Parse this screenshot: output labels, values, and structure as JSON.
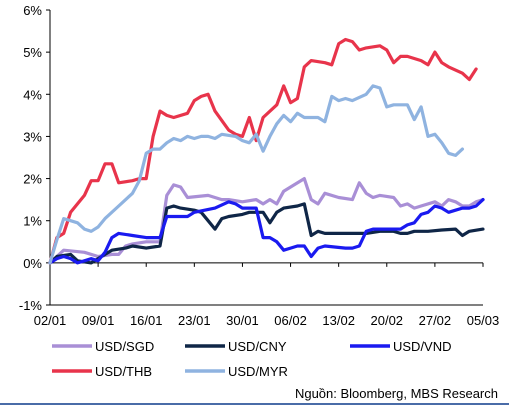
{
  "chart_data": {
    "type": "line",
    "title": "",
    "xlabel": "",
    "ylabel": "",
    "ylim": [
      -1,
      6
    ],
    "yticks": [
      "6%",
      "5%",
      "4%",
      "3%",
      "2%",
      "1%",
      "0%",
      "-1%"
    ],
    "ytick_values": [
      6,
      5,
      4,
      3,
      2,
      1,
      0,
      -1
    ],
    "x_ticks": [
      "02/01",
      "09/01",
      "16/01",
      "23/01",
      "30/01",
      "06/02",
      "13/02",
      "20/02",
      "27/02",
      "05/03"
    ],
    "grid": false,
    "legend_position": "bottom",
    "series": [
      {
        "name": "USD/SGD",
        "color": "#a98fd6",
        "points": [
          [
            0,
            0.0
          ],
          [
            2,
            0.3
          ],
          [
            5,
            0.25
          ],
          [
            7,
            0.15
          ],
          [
            9,
            0.2
          ],
          [
            10,
            0.2
          ],
          [
            11,
            0.4
          ],
          [
            12,
            0.45
          ],
          [
            14,
            0.5
          ],
          [
            16,
            0.5
          ],
          [
            17,
            1.6
          ],
          [
            18,
            1.85
          ],
          [
            19,
            1.8
          ],
          [
            20,
            1.55
          ],
          [
            23,
            1.6
          ],
          [
            25,
            1.5
          ],
          [
            26,
            1.5
          ],
          [
            28,
            1.45
          ],
          [
            30,
            1.5
          ],
          [
            31,
            1.4
          ],
          [
            32,
            1.5
          ],
          [
            33,
            1.4
          ],
          [
            34,
            1.7
          ],
          [
            35,
            1.8
          ],
          [
            37,
            2.0
          ],
          [
            38,
            1.5
          ],
          [
            39,
            1.4
          ],
          [
            40,
            1.65
          ],
          [
            42,
            1.55
          ],
          [
            44,
            1.5
          ],
          [
            45,
            1.9
          ],
          [
            46,
            1.65
          ],
          [
            47,
            1.55
          ],
          [
            48,
            1.6
          ],
          [
            50,
            1.55
          ],
          [
            51,
            1.35
          ],
          [
            52,
            1.4
          ],
          [
            53,
            1.3
          ],
          [
            54,
            1.35
          ],
          [
            56,
            1.45
          ],
          [
            57,
            1.35
          ],
          [
            58,
            1.5
          ],
          [
            59,
            1.45
          ],
          [
            60,
            1.35
          ],
          [
            61,
            1.35
          ],
          [
            62,
            1.45
          ],
          [
            63,
            1.5
          ]
        ]
      },
      {
        "name": "USD/CNY",
        "color": "#0f2647",
        "points": [
          [
            0,
            0.0
          ],
          [
            1,
            0.15
          ],
          [
            3,
            0.2
          ],
          [
            4,
            0.05
          ],
          [
            6,
            0.0
          ],
          [
            7,
            0.1
          ],
          [
            8,
            0.2
          ],
          [
            9,
            0.3
          ],
          [
            11,
            0.35
          ],
          [
            12,
            0.4
          ],
          [
            14,
            0.35
          ],
          [
            16,
            0.4
          ],
          [
            17,
            1.3
          ],
          [
            18,
            1.35
          ],
          [
            19,
            1.3
          ],
          [
            21,
            1.25
          ],
          [
            22,
            1.2
          ],
          [
            23,
            1.0
          ],
          [
            24,
            0.8
          ],
          [
            25,
            1.05
          ],
          [
            26,
            1.1
          ],
          [
            28,
            1.15
          ],
          [
            29,
            1.2
          ],
          [
            31,
            1.2
          ],
          [
            32,
            0.95
          ],
          [
            33,
            1.2
          ],
          [
            34,
            1.3
          ],
          [
            36,
            1.35
          ],
          [
            37,
            1.4
          ],
          [
            38,
            0.65
          ],
          [
            39,
            0.75
          ],
          [
            40,
            0.7
          ],
          [
            43,
            0.7
          ],
          [
            46,
            0.7
          ],
          [
            48,
            0.75
          ],
          [
            50,
            0.75
          ],
          [
            51,
            0.7
          ],
          [
            52,
            0.7
          ],
          [
            53,
            0.75
          ],
          [
            55,
            0.75
          ],
          [
            57,
            0.78
          ],
          [
            59,
            0.8
          ],
          [
            60,
            0.65
          ],
          [
            61,
            0.75
          ],
          [
            63,
            0.8
          ]
        ]
      },
      {
        "name": "USD/VND",
        "color": "#1a1af0",
        "points": [
          [
            0,
            0.0
          ],
          [
            1,
            0.1
          ],
          [
            2,
            0.15
          ],
          [
            3,
            0.1
          ],
          [
            4,
            0.0
          ],
          [
            5,
            0.05
          ],
          [
            6,
            0.1
          ],
          [
            7,
            0.05
          ],
          [
            8,
            0.25
          ],
          [
            9,
            0.6
          ],
          [
            10,
            0.7
          ],
          [
            12,
            0.65
          ],
          [
            14,
            0.6
          ],
          [
            16,
            0.6
          ],
          [
            17,
            1.1
          ],
          [
            18,
            1.1
          ],
          [
            20,
            1.1
          ],
          [
            21,
            1.2
          ],
          [
            24,
            1.3
          ],
          [
            26,
            1.45
          ],
          [
            27,
            1.4
          ],
          [
            28,
            1.3
          ],
          [
            30,
            1.3
          ],
          [
            31,
            0.6
          ],
          [
            32,
            0.6
          ],
          [
            33,
            0.5
          ],
          [
            34,
            0.3
          ],
          [
            35,
            0.35
          ],
          [
            36,
            0.4
          ],
          [
            37,
            0.4
          ],
          [
            38,
            0.15
          ],
          [
            39,
            0.35
          ],
          [
            40,
            0.4
          ],
          [
            43,
            0.35
          ],
          [
            44,
            0.35
          ],
          [
            45,
            0.4
          ],
          [
            46,
            0.75
          ],
          [
            47,
            0.8
          ],
          [
            50,
            0.8
          ],
          [
            51,
            0.8
          ],
          [
            52,
            0.9
          ],
          [
            53,
            0.95
          ],
          [
            54,
            1.15
          ],
          [
            55,
            1.2
          ],
          [
            56,
            1.35
          ],
          [
            57,
            1.3
          ],
          [
            58,
            1.2
          ],
          [
            59,
            1.25
          ],
          [
            60,
            1.3
          ],
          [
            61,
            1.3
          ],
          [
            62,
            1.35
          ],
          [
            63,
            1.5
          ]
        ]
      },
      {
        "name": "USD/THB",
        "color": "#e8344b",
        "points": [
          [
            0,
            0.0
          ],
          [
            1,
            0.6
          ],
          [
            2,
            0.7
          ],
          [
            3,
            1.2
          ],
          [
            5,
            1.6
          ],
          [
            6,
            1.95
          ],
          [
            7,
            1.95
          ],
          [
            8,
            2.35
          ],
          [
            9,
            2.35
          ],
          [
            10,
            1.9
          ],
          [
            12,
            1.95
          ],
          [
            13,
            2.0
          ],
          [
            14,
            2.0
          ],
          [
            15,
            3.0
          ],
          [
            16,
            3.6
          ],
          [
            17,
            3.5
          ],
          [
            18,
            3.45
          ],
          [
            20,
            3.55
          ],
          [
            21,
            3.85
          ],
          [
            22,
            3.95
          ],
          [
            23,
            4.0
          ],
          [
            24,
            3.6
          ],
          [
            26,
            3.15
          ],
          [
            27,
            3.05
          ],
          [
            28,
            3.0
          ],
          [
            29,
            3.45
          ],
          [
            30,
            2.9
          ],
          [
            31,
            3.45
          ],
          [
            33,
            3.75
          ],
          [
            34,
            4.2
          ],
          [
            35,
            3.8
          ],
          [
            36,
            3.9
          ],
          [
            37,
            4.65
          ],
          [
            38,
            4.8
          ],
          [
            40,
            4.75
          ],
          [
            41,
            4.7
          ],
          [
            42,
            5.2
          ],
          [
            43,
            5.3
          ],
          [
            44,
            5.25
          ],
          [
            45,
            5.05
          ],
          [
            46,
            5.1
          ],
          [
            48,
            5.15
          ],
          [
            49,
            5.05
          ],
          [
            50,
            4.75
          ],
          [
            51,
            4.9
          ],
          [
            52,
            4.9
          ],
          [
            54,
            4.8
          ],
          [
            55,
            4.7
          ],
          [
            56,
            5.0
          ],
          [
            57,
            4.75
          ],
          [
            58,
            4.65
          ],
          [
            60,
            4.5
          ],
          [
            61,
            4.35
          ],
          [
            62,
            4.6
          ]
        ]
      },
      {
        "name": "USD/MYR",
        "color": "#8fb3e0",
        "points": [
          [
            0,
            0.0
          ],
          [
            1,
            0.55
          ],
          [
            2,
            1.05
          ],
          [
            3,
            1.0
          ],
          [
            4,
            0.95
          ],
          [
            5,
            0.8
          ],
          [
            6,
            0.75
          ],
          [
            7,
            0.85
          ],
          [
            8,
            1.05
          ],
          [
            10,
            1.35
          ],
          [
            12,
            1.65
          ],
          [
            13,
            1.95
          ],
          [
            14,
            2.6
          ],
          [
            15,
            2.7
          ],
          [
            16,
            2.7
          ],
          [
            17,
            2.85
          ],
          [
            18,
            2.95
          ],
          [
            19,
            2.9
          ],
          [
            20,
            3.0
          ],
          [
            21,
            2.95
          ],
          [
            22,
            3.0
          ],
          [
            23,
            3.0
          ],
          [
            24,
            2.95
          ],
          [
            25,
            3.05
          ],
          [
            27,
            3.0
          ],
          [
            28,
            2.9
          ],
          [
            29,
            2.85
          ],
          [
            30,
            3.05
          ],
          [
            31,
            2.65
          ],
          [
            32,
            3.0
          ],
          [
            33,
            3.3
          ],
          [
            34,
            3.5
          ],
          [
            35,
            3.35
          ],
          [
            36,
            3.55
          ],
          [
            37,
            3.45
          ],
          [
            39,
            3.45
          ],
          [
            40,
            3.35
          ],
          [
            41,
            3.95
          ],
          [
            42,
            3.85
          ],
          [
            43,
            3.9
          ],
          [
            44,
            3.85
          ],
          [
            46,
            4.0
          ],
          [
            47,
            4.2
          ],
          [
            48,
            4.15
          ],
          [
            49,
            3.7
          ],
          [
            50,
            3.75
          ],
          [
            52,
            3.75
          ],
          [
            53,
            3.4
          ],
          [
            54,
            3.7
          ],
          [
            55,
            3.0
          ],
          [
            56,
            3.05
          ],
          [
            57,
            2.85
          ],
          [
            58,
            2.6
          ],
          [
            59,
            2.55
          ],
          [
            60,
            2.7
          ]
        ]
      }
    ]
  },
  "source": "Nguồn: Bloomberg, MBS Research"
}
